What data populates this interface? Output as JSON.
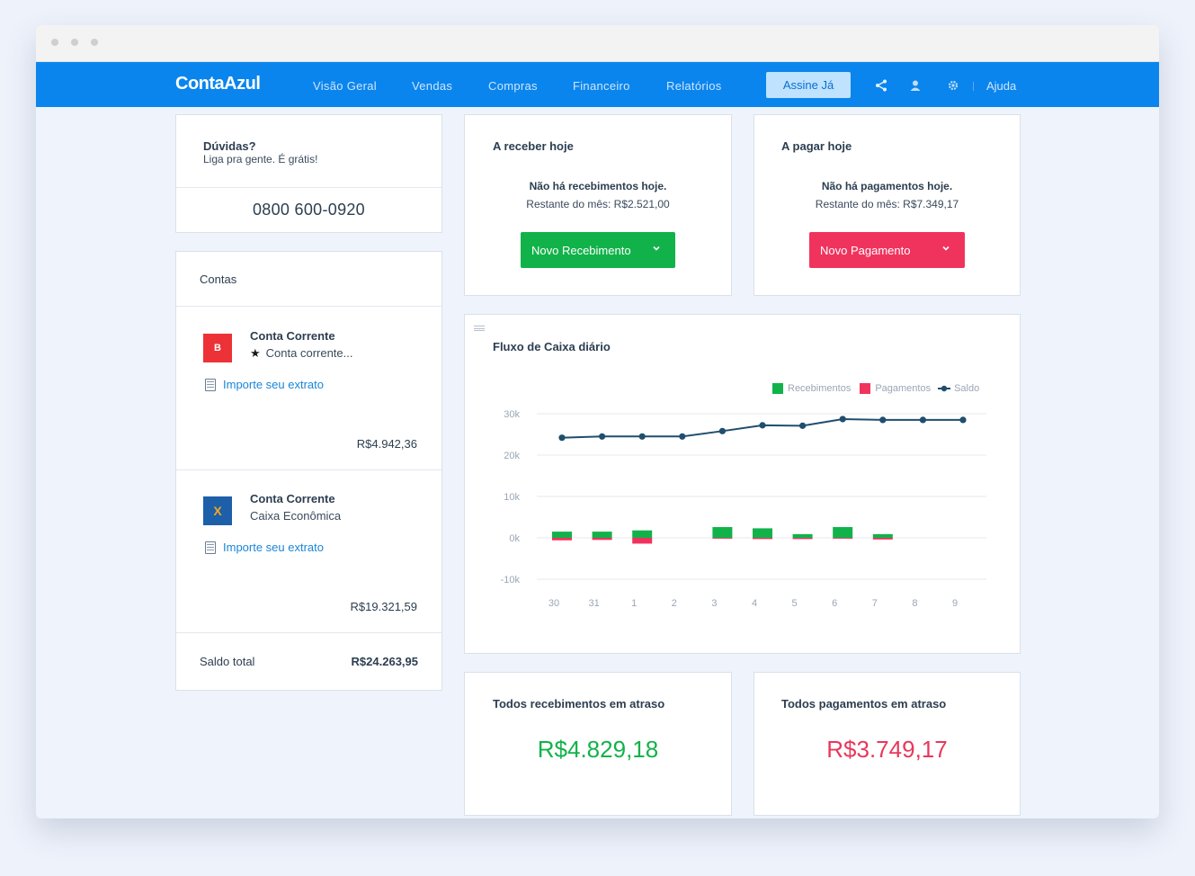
{
  "app": {
    "logo": "ContaAzul"
  },
  "nav": {
    "items": [
      "Visão Geral",
      "Vendas",
      "Compras",
      "Financeiro",
      "Relatórios"
    ],
    "cta": "Assine Já",
    "help": "Ajuda"
  },
  "help_card": {
    "title": "Dúvidas?",
    "subtitle": "Liga pra gente. É grátis!",
    "phone": "0800 600-0920"
  },
  "accounts": {
    "title": "Contas",
    "items": [
      {
        "icon_label": "B",
        "icon_color": "#ec3237",
        "name": "Conta Corrente",
        "subtitle": "Conta corrente...",
        "starred": true,
        "import_label": "Importe seu extrato",
        "balance": "R$4.942,36"
      },
      {
        "icon_label": "X",
        "icon_color": "#1d5fa8",
        "name": "Conta Corrente",
        "subtitle": "Caixa Econômica",
        "starred": false,
        "import_label": "Importe seu extrato",
        "balance": "R$19.321,59"
      }
    ],
    "total_label": "Saldo total",
    "total_value": "R$24.263,95"
  },
  "receive_today": {
    "title": "A receber hoje",
    "empty": "Não há recebimentos hoje.",
    "remaining": "Restante do mês: R$2.521,00",
    "button": "Novo Recebimento",
    "button_color": "#12b24a"
  },
  "pay_today": {
    "title": "A pagar hoje",
    "empty": "Não há pagamentos hoje.",
    "remaining": "Restante do mês: R$7.349,17",
    "button": "Novo Pagamento",
    "button_color": "#f0335d"
  },
  "overdue_receive": {
    "title": "Todos recebimentos em atraso",
    "value": "R$4.829,18"
  },
  "overdue_pay": {
    "title": "Todos pagamentos em atraso",
    "value": "R$3.749,17"
  },
  "chart_data": {
    "type": "bar",
    "title": "Fluxo de Caixa diário",
    "categories": [
      "30",
      "31",
      "1",
      "2",
      "3",
      "4",
      "5",
      "6",
      "7",
      "8",
      "9"
    ],
    "yticks": [
      "30k",
      "20k",
      "10k",
      "0k",
      "-10k"
    ],
    "ylim": [
      -10000,
      30000
    ],
    "legend_position": "top-right",
    "grid": true,
    "colors": {
      "recebimentos": "#12b24a",
      "pagamentos": "#f0335d",
      "saldo": "#1f4e6e"
    },
    "series": [
      {
        "name": "Recebimentos",
        "type": "bar",
        "values": [
          1500,
          1500,
          1800,
          0,
          2600,
          2300,
          900,
          2600,
          900,
          0,
          0
        ]
      },
      {
        "name": "Pagamentos",
        "type": "bar",
        "values": [
          -600,
          -500,
          -1400,
          0,
          -200,
          -300,
          -300,
          -200,
          -400,
          0,
          0
        ]
      },
      {
        "name": "Saldo",
        "type": "line",
        "values": [
          24200,
          24500,
          24500,
          24500,
          25800,
          27200,
          27100,
          28700,
          28500,
          28500,
          28500
        ]
      }
    ]
  }
}
